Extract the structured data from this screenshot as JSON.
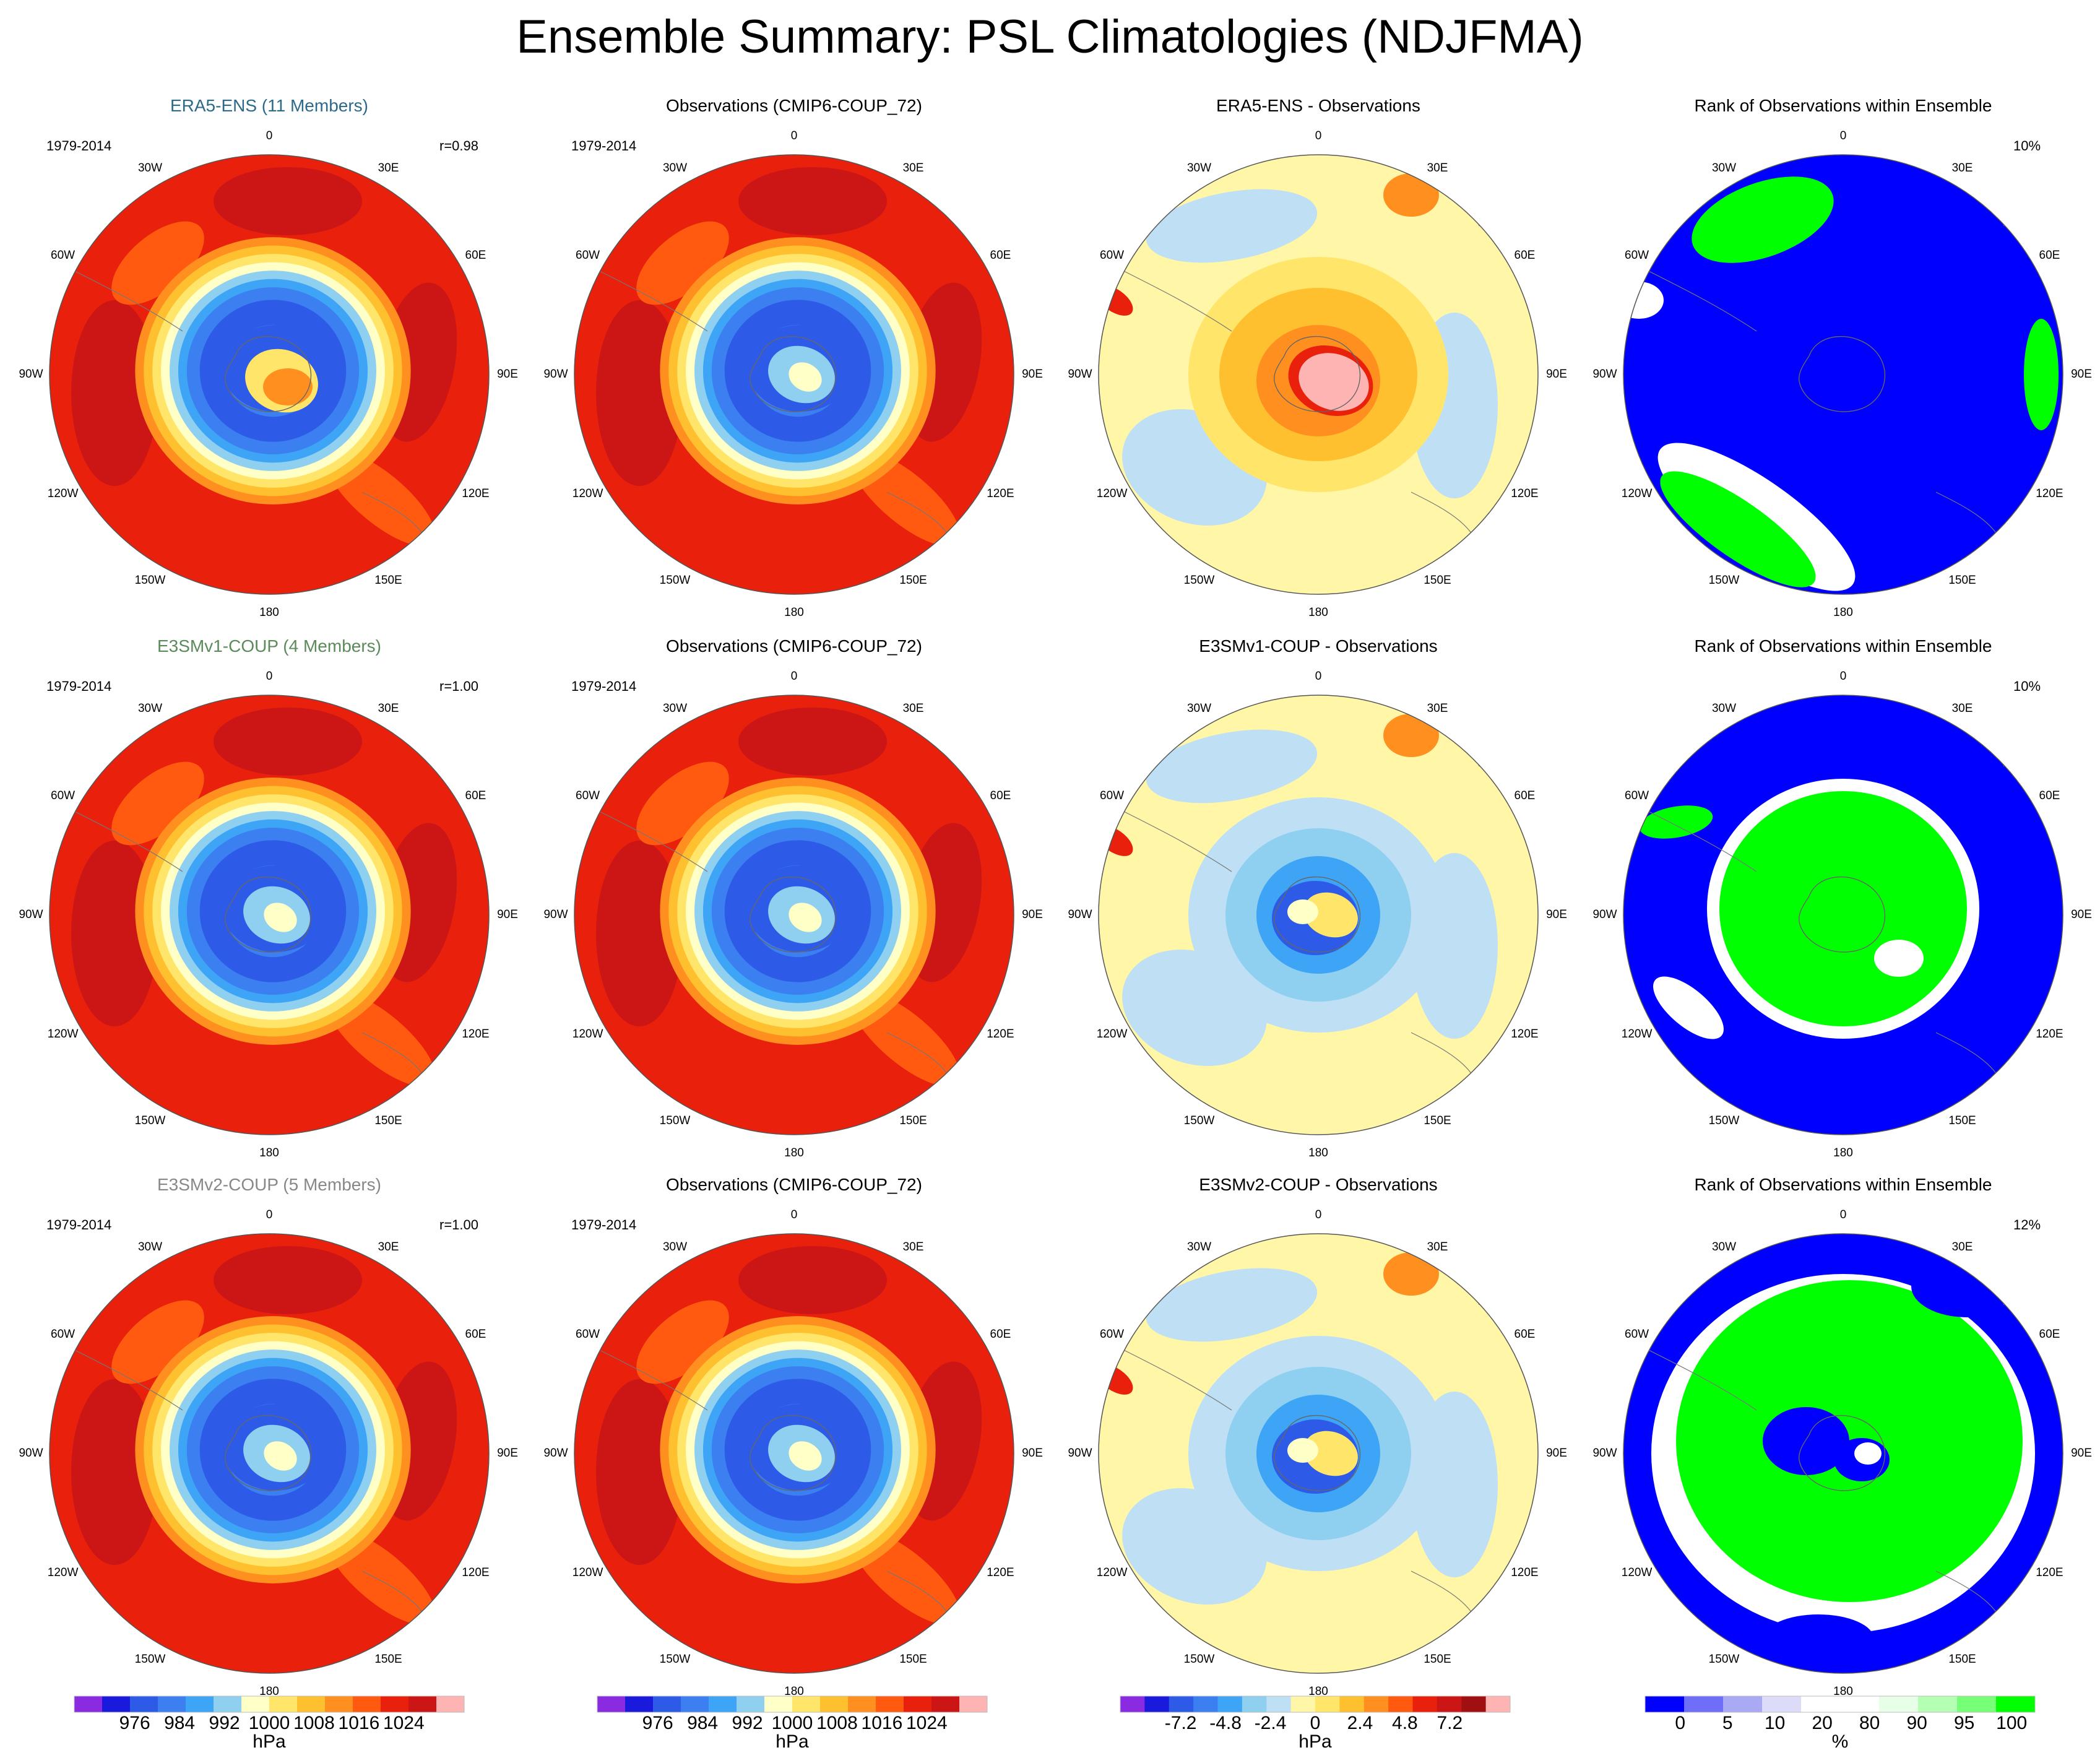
{
  "title": "Ensemble Summary: PSL Climatologies (NDJFMA)",
  "chart_data": {
    "type": "heatmap",
    "projection": "south polar stereographic",
    "lon_labels": [
      "0",
      "30E",
      "60E",
      "90E",
      "120E",
      "150E",
      "180",
      "150W",
      "120W",
      "90W",
      "60W",
      "30W"
    ],
    "rows": [
      {
        "panels": [
          {
            "title": "ERA5-ENS (11 Members)",
            "title_color": "#2c6a8a",
            "kind": "psl",
            "period": "1979-2014",
            "stat": "r=0.98",
            "core": "warm"
          },
          {
            "title": "Observations (CMIP6-COUP_72)",
            "title_color": "#000000",
            "kind": "psl",
            "period": "1979-2014",
            "stat": "",
            "core": "light"
          },
          {
            "title": "ERA5-ENS - Observations",
            "title_color": "#000000",
            "kind": "diff",
            "period": "",
            "stat": "",
            "core": "pink"
          },
          {
            "title": "Rank of Observations within Ensemble",
            "title_color": "#000000",
            "kind": "rank",
            "period": "",
            "stat": "10%",
            "core": "blue"
          }
        ]
      },
      {
        "panels": [
          {
            "title": "E3SMv1-COUP (4 Members)",
            "title_color": "#5b8a5b",
            "kind": "psl",
            "period": "1979-2014",
            "stat": "r=1.00",
            "core": "light"
          },
          {
            "title": "Observations (CMIP6-COUP_72)",
            "title_color": "#000000",
            "kind": "psl",
            "period": "1979-2014",
            "stat": "",
            "core": "light"
          },
          {
            "title": "E3SMv1-COUP - Observations",
            "title_color": "#000000",
            "kind": "diff",
            "period": "",
            "stat": "",
            "core": "blue"
          },
          {
            "title": "Rank of Observations within Ensemble",
            "title_color": "#000000",
            "kind": "rank",
            "period": "",
            "stat": "10%",
            "core": "green"
          }
        ]
      },
      {
        "panels": [
          {
            "title": "E3SMv2-COUP (5 Members)",
            "title_color": "#888888",
            "kind": "psl",
            "period": "1979-2014",
            "stat": "r=1.00",
            "core": "light"
          },
          {
            "title": "Observations (CMIP6-COUP_72)",
            "title_color": "#000000",
            "kind": "psl",
            "period": "1979-2014",
            "stat": "",
            "core": "light"
          },
          {
            "title": "E3SMv2-COUP - Observations",
            "title_color": "#000000",
            "kind": "diff",
            "period": "",
            "stat": "",
            "core": "blue"
          },
          {
            "title": "Rank of Observations within Ensemble",
            "title_color": "#000000",
            "kind": "rank",
            "period": "",
            "stat": "12%",
            "core": "greenmix"
          }
        ]
      }
    ],
    "colorbars": [
      {
        "unit": "hPa",
        "ticks": [
          "976",
          "984",
          "992",
          "1000",
          "1008",
          "1016",
          "1024"
        ],
        "colors": [
          "#8a2be2",
          "#1a1adc",
          "#2d5be8",
          "#3c7ff0",
          "#3ea4f6",
          "#8fd0f0",
          "#ffffc8",
          "#ffe66b",
          "#ffc030",
          "#ff9020",
          "#ff5a10",
          "#e8200c",
          "#cc1616",
          "#ffb4b4"
        ]
      },
      {
        "unit": "hPa",
        "ticks": [
          "976",
          "984",
          "992",
          "1000",
          "1008",
          "1016",
          "1024"
        ],
        "colors": [
          "#8a2be2",
          "#1a1adc",
          "#2d5be8",
          "#3c7ff0",
          "#3ea4f6",
          "#8fd0f0",
          "#ffffc8",
          "#ffe66b",
          "#ffc030",
          "#ff9020",
          "#ff5a10",
          "#e8200c",
          "#cc1616",
          "#ffb4b4"
        ]
      },
      {
        "unit": "hPa",
        "ticks": [
          "-7.2",
          "-4.8",
          "-2.4",
          "0",
          "2.4",
          "4.8",
          "7.2"
        ],
        "colors": [
          "#8a2be2",
          "#1a1adc",
          "#2d5be8",
          "#3c7ff0",
          "#3ea4f6",
          "#8fd0f0",
          "#bfe0f4",
          "#fff6a8",
          "#ffe66b",
          "#ffc030",
          "#ff9020",
          "#ff5a10",
          "#e8200c",
          "#cc1616",
          "#a01010",
          "#ffb4b4"
        ]
      },
      {
        "unit": "%",
        "ticks": [
          "0",
          "5",
          "10",
          "20",
          "80",
          "90",
          "95",
          "100"
        ],
        "colors": [
          "#0000ff",
          "#6e6ef8",
          "#aaaaf4",
          "#dcdcf8",
          "#ffffff",
          "#ffffff",
          "#e6ffe6",
          "#b4ffb4",
          "#78ff78",
          "#00ff00"
        ]
      }
    ]
  }
}
